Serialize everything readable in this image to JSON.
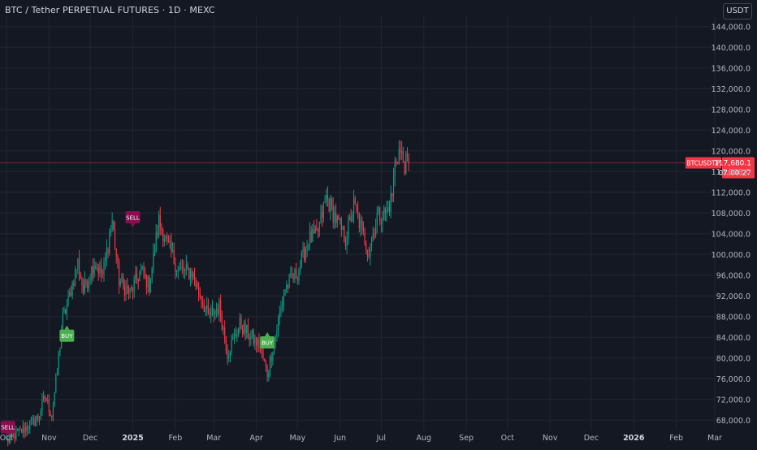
{
  "title": "BTC / Tether PERPETUAL FUTURES · 1D · MEXC",
  "currency_button": "USDT",
  "colors": {
    "background": "#141823",
    "grid": "#222632",
    "up": "#089981",
    "down": "#f23645",
    "buy": "#4caf50",
    "sell": "#880e4f",
    "axis_text": "#b2b5be",
    "price_line": "#f23645"
  },
  "chart_data": {
    "type": "candlestick",
    "title": "BTC / Tether PERPETUAL FUTURES · 1D · MEXC",
    "y_axis_labels": [
      "144,000.0",
      "140,000.0",
      "136,000.0",
      "132,000.0",
      "128,000.0",
      "124,000.0",
      "120,000.0",
      "116,000.0",
      "112,000.0",
      "108,000.0",
      "104,000.0",
      "100,000.0",
      "96,000.0",
      "92,000.0",
      "88,000.0",
      "84,000.0",
      "80,000.0",
      "76,000.0",
      "72,000.0",
      "68,000.0"
    ],
    "y_range": [
      66000,
      146000
    ],
    "x_axis_labels": [
      "Oct",
      "Nov",
      "Dec",
      "2025",
      "Feb",
      "Mar",
      "Apr",
      "May",
      "Jun",
      "Jul",
      "Aug",
      "Sep",
      "Oct",
      "Nov",
      "Dec",
      "2026",
      "Feb",
      "Mar"
    ],
    "x_range": [
      "2024-10-01",
      "2026-03-01"
    ],
    "series": [
      {
        "name": "BTCUSDT.P",
        "daily_closes": [
          {
            "date": "2024-10-01",
            "close": 64000
          },
          {
            "date": "2024-10-15",
            "close": 66500
          },
          {
            "date": "2024-10-24",
            "close": 68500
          },
          {
            "date": "2024-10-29",
            "close": 72500
          },
          {
            "date": "2024-11-03",
            "close": 69000
          },
          {
            "date": "2024-11-06",
            "close": 75500
          },
          {
            "date": "2024-11-11",
            "close": 87500
          },
          {
            "date": "2024-11-15",
            "close": 91000
          },
          {
            "date": "2024-11-22",
            "close": 98500
          },
          {
            "date": "2024-11-26",
            "close": 93000
          },
          {
            "date": "2024-12-04",
            "close": 98500
          },
          {
            "date": "2024-12-10",
            "close": 96000
          },
          {
            "date": "2024-12-17",
            "close": 106500
          },
          {
            "date": "2024-12-22",
            "close": 95000
          },
          {
            "date": "2024-12-30",
            "close": 92500
          },
          {
            "date": "2025-01-07",
            "close": 97000
          },
          {
            "date": "2025-01-13",
            "close": 94000
          },
          {
            "date": "2025-01-20",
            "close": 106500
          },
          {
            "date": "2025-01-27",
            "close": 101500
          },
          {
            "date": "2025-02-03",
            "close": 97000
          },
          {
            "date": "2025-02-13",
            "close": 96500
          },
          {
            "date": "2025-02-25",
            "close": 88000
          },
          {
            "date": "2025-03-05",
            "close": 90000
          },
          {
            "date": "2025-03-11",
            "close": 81000
          },
          {
            "date": "2025-03-20",
            "close": 86500
          },
          {
            "date": "2025-03-28",
            "close": 84000
          },
          {
            "date": "2025-04-03",
            "close": 82500
          },
          {
            "date": "2025-04-09",
            "close": 77000
          },
          {
            "date": "2025-04-15",
            "close": 84500
          },
          {
            "date": "2025-04-22",
            "close": 93500
          },
          {
            "date": "2025-05-01",
            "close": 96500
          },
          {
            "date": "2025-05-09",
            "close": 103000
          },
          {
            "date": "2025-05-15",
            "close": 103500
          },
          {
            "date": "2025-05-22",
            "close": 111000
          },
          {
            "date": "2025-05-28",
            "close": 107500
          },
          {
            "date": "2025-06-05",
            "close": 103000
          },
          {
            "date": "2025-06-11",
            "close": 109500
          },
          {
            "date": "2025-06-17",
            "close": 104500
          },
          {
            "date": "2025-06-22",
            "close": 100500
          },
          {
            "date": "2025-06-28",
            "close": 107500
          },
          {
            "date": "2025-07-05",
            "close": 108000
          },
          {
            "date": "2025-07-09",
            "close": 111500
          },
          {
            "date": "2025-07-11",
            "close": 117500
          },
          {
            "date": "2025-07-14",
            "close": 120000
          },
          {
            "date": "2025-07-18",
            "close": 117500
          },
          {
            "date": "2025-07-21",
            "close": 117680
          }
        ]
      }
    ],
    "signals": [
      {
        "label": "SELL",
        "date": "2024-10-02",
        "price": 65500,
        "type": "sell"
      },
      {
        "label": "BUY",
        "date": "2024-11-14",
        "price": 85500,
        "type": "buy"
      },
      {
        "label": "SELL",
        "date": "2025-01-01",
        "price": 106000,
        "type": "sell"
      },
      {
        "label": "BUY",
        "date": "2025-04-09",
        "price": 84200,
        "type": "buy"
      }
    ],
    "current_price": {
      "symbol": "BTCUSDT.P",
      "price_label": "117,680.1",
      "countdown": "07:00:27",
      "value": 117680.1
    },
    "grid": true
  }
}
